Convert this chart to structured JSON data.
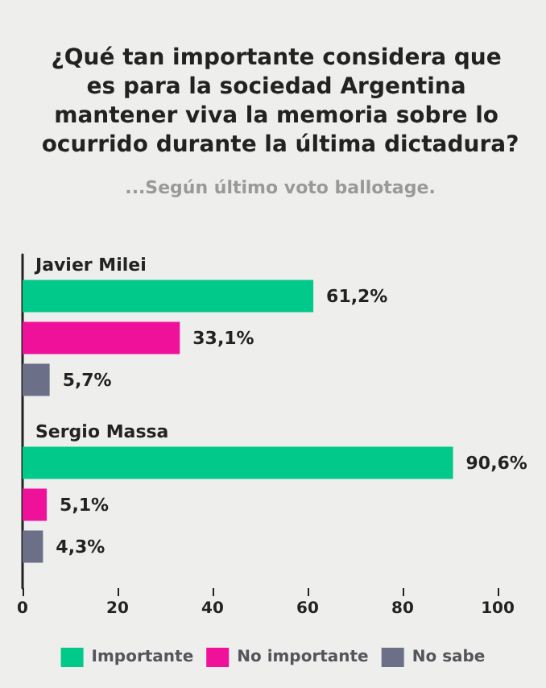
{
  "chart_data": {
    "type": "bar",
    "orientation": "horizontal",
    "title": "¿Qué tan importante considera que es para la sociedad Argentina mantener viva la memoria sobre lo ocurrido durante la última dictadura?",
    "subtitle": "...Según último voto ballotage.",
    "categories": [
      "Javier Milei",
      "Sergio Massa"
    ],
    "series": [
      {
        "name": "Importante",
        "color": "#00c98a",
        "values": [
          61.2,
          90.6
        ],
        "value_labels": [
          "61,2%",
          "90,6%"
        ]
      },
      {
        "name": "No importante",
        "color": "#f0119a",
        "values": [
          33.1,
          5.1
        ],
        "value_labels": [
          "33,1%",
          "5,1%"
        ]
      },
      {
        "name": "No sabe",
        "color": "#6b7088",
        "values": [
          5.7,
          4.3
        ],
        "value_labels": [
          "5,7%",
          "4,3%"
        ]
      }
    ],
    "xlim": [
      0,
      100
    ],
    "xticks": [
      0,
      20,
      40,
      60,
      80,
      100
    ],
    "grid": false,
    "legend": "bottom"
  }
}
